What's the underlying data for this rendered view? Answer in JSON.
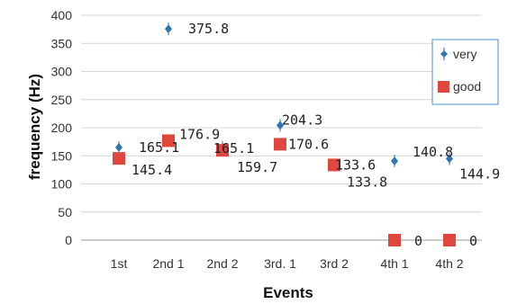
{
  "chart_data": {
    "type": "scatter",
    "title": "",
    "xlabel": "Events",
    "ylabel": "frequency (Hz)",
    "ylim": [
      0,
      400
    ],
    "yticks": [
      0,
      50,
      100,
      150,
      200,
      250,
      300,
      350,
      400
    ],
    "categories": [
      "1st",
      "2nd 1",
      "2nd 2",
      "3rd. 1",
      "3rd 2",
      "4th 1",
      "4th 2"
    ],
    "grid": "horizontal",
    "legend": "right",
    "series": [
      {
        "name": "very",
        "color": "#2E75B6",
        "marker": "diamond",
        "points": [
          {
            "category": "1st",
            "value": 165.1,
            "label": "165.1"
          },
          {
            "category": "2nd 1",
            "value": 375.8,
            "label": "375.8"
          },
          {
            "category": "2nd 2",
            "value": 165.1,
            "label": "165.1"
          },
          {
            "category": "3rd. 1",
            "value": 204.3,
            "label": "204.3"
          },
          {
            "category": "3rd 2",
            "value": 133.6,
            "label": "133.6"
          },
          {
            "category": "4th 1",
            "value": 140.8,
            "label": "140.8"
          },
          {
            "category": "4th 2",
            "value": 144.9,
            "label": "144.9"
          }
        ]
      },
      {
        "name": "good",
        "color": "#E0453E",
        "marker": "square",
        "points": [
          {
            "category": "1st",
            "value": 145.4,
            "label": "145.4"
          },
          {
            "category": "2nd 1",
            "value": 176.9,
            "label": "176.9"
          },
          {
            "category": "2nd 2",
            "value": 159.7,
            "label": "159.7"
          },
          {
            "category": "3rd. 1",
            "value": 170.6,
            "label": "170.6"
          },
          {
            "category": "3rd 2",
            "value": 133.8,
            "label": "133.8"
          },
          {
            "category": "4th 1",
            "value": 0,
            "label": "0"
          },
          {
            "category": "4th 2",
            "value": 0,
            "label": "0"
          }
        ]
      }
    ]
  }
}
